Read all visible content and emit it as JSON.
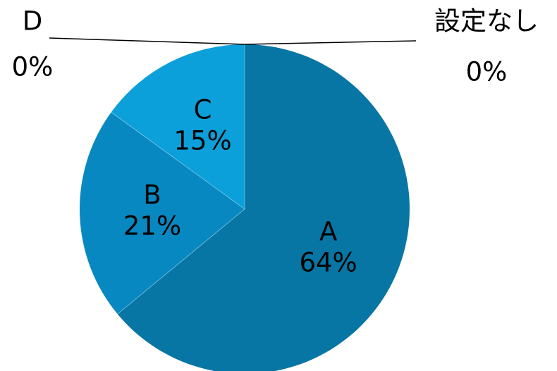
{
  "chart_data": {
    "type": "pie",
    "categories": [
      "A",
      "B",
      "C",
      "D",
      "設定なし"
    ],
    "values": [
      64,
      21,
      15,
      0,
      0
    ],
    "value_suffix": "%",
    "colors": [
      "#0776a4",
      "#0888c0",
      "#0ba0da",
      "#0ba0da",
      "#0ba0da"
    ],
    "title": "",
    "legend": "none",
    "start_angle": "12 o'clock, clockwise"
  }
}
